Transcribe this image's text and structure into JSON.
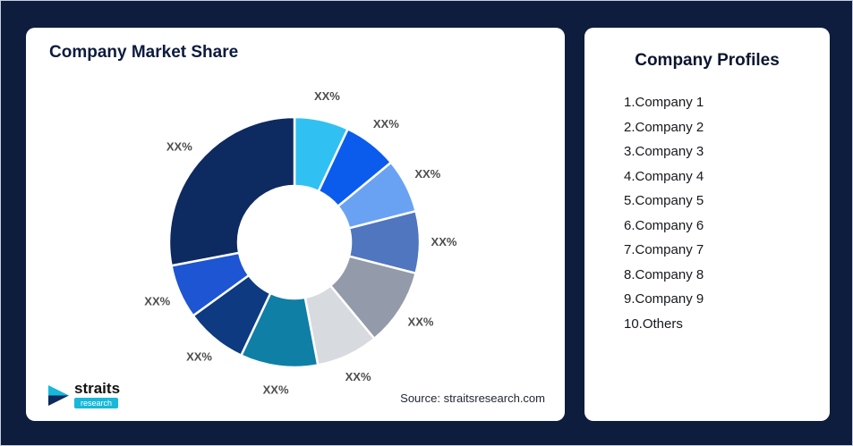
{
  "background_color": "#0e1c3e",
  "left_card": {
    "title": "Company Market Share",
    "source": "Source: straitsresearch.com",
    "logo": {
      "name": "straits",
      "sub": "research"
    }
  },
  "right_card": {
    "title": "Company Profiles",
    "items": [
      "1.Company 1",
      "2.Company 2",
      "3.Company 3",
      "4.Company 4",
      "5.Company 5",
      "6.Company 6",
      "7.Company 7",
      "8.Company 8",
      "9.Company 9",
      "10.Others"
    ]
  },
  "chart_data": {
    "type": "pie",
    "subtype": "donut",
    "title": "Company Market Share",
    "start_angle_deg": 0,
    "direction": "clockwise",
    "inner_radius_ratio": 0.45,
    "legend_position": "none",
    "segments": [
      {
        "label": "XX%",
        "value_pct_est": 7,
        "color": "#30c1f2"
      },
      {
        "label": "XX%",
        "value_pct_est": 7,
        "color": "#0b5ced"
      },
      {
        "label": "XX%",
        "value_pct_est": 7,
        "color": "#6aa2f3"
      },
      {
        "label": "XX%",
        "value_pct_est": 8,
        "color": "#5076c0"
      },
      {
        "label": "XX%",
        "value_pct_est": 10,
        "color": "#939aa9"
      },
      {
        "label": "XX%",
        "value_pct_est": 8,
        "color": "#d7dadf"
      },
      {
        "label": "XX%",
        "value_pct_est": 10,
        "color": "#0f7fa6"
      },
      {
        "label": "XX%",
        "value_pct_est": 8,
        "color": "#0d3a80"
      },
      {
        "label": "XX%",
        "value_pct_est": 7,
        "color": "#1d55d3"
      },
      {
        "label": "XX%",
        "value_pct_est": 28,
        "color": "#0d2a61"
      }
    ]
  }
}
